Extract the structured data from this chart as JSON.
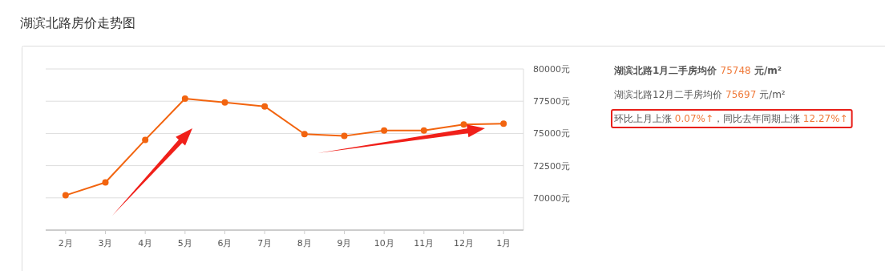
{
  "chart_data": {
    "type": "line",
    "title": "湖滨北路房价走势图",
    "categories": [
      "2月",
      "3月",
      "4月",
      "5月",
      "6月",
      "7月",
      "8月",
      "9月",
      "10月",
      "11月",
      "12月",
      "1月"
    ],
    "series": [
      {
        "color": "#f2640f",
        "values": [
          70200,
          71200,
          74500,
          77700,
          77400,
          77100,
          74950,
          74800,
          75230,
          75230,
          75700,
          75750
        ]
      }
    ],
    "ylim": [
      67500,
      80000
    ],
    "yticks": [
      {
        "value": 70000,
        "label": "70000元"
      },
      {
        "value": 72500,
        "label": "72500元"
      },
      {
        "value": 75000,
        "label": "75000元"
      },
      {
        "value": 77500,
        "label": "77500元"
      },
      {
        "value": 80000,
        "label": "80000元"
      }
    ],
    "grid": "y",
    "marker": "circle",
    "line_style": "solid",
    "annotations": [
      "湖滨北路1月二手房均价 75748 元/m²",
      "湖滨北路12月二手房均价 75697 元/m²",
      "环比上月上涨 0.07%↑，同比去年同期上涨 12.27%↑"
    ]
  }
}
